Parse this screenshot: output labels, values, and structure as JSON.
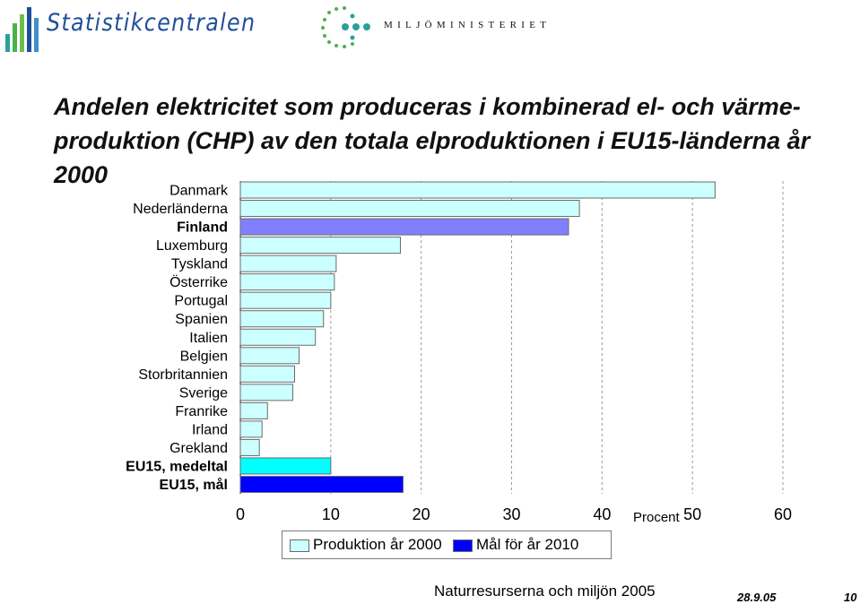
{
  "header": {
    "left_logo_text": "Statistikcentralen",
    "right_logo_text": "MILJÖMINISTERIET"
  },
  "title": "Andelen elektricitet som produceras i kombinerad el- och värme-produktion (CHP) av den totala elproduktionen i EU15-länderna år 2000",
  "footer": {
    "source": "Naturresurserna och miljön 2005",
    "date": "28.9.05",
    "page": "10"
  },
  "colors": {
    "production": "#ccffff",
    "finland": "#8080ff",
    "eu_average": "#00ffff",
    "target": "#0000ff",
    "bar_border": "#6b6b6b",
    "logo_blue": "#1f4f98",
    "logo_green": "#4fb04a",
    "logo_teal": "#2aa198"
  },
  "chart_data": {
    "type": "bar",
    "orientation": "horizontal",
    "categories": [
      "Danmark",
      "Nederländerna",
      "Finland",
      "Luxemburg",
      "Tyskland",
      "Österrike",
      "Portugal",
      "Spanien",
      "Italien",
      "Belgien",
      "Storbritannien",
      "Sverige",
      "Franrike",
      "Irland",
      "Grekland",
      "EU15, medeltal",
      "EU15, mål"
    ],
    "bold_categories": [
      "Finland",
      "EU15, medeltal",
      "EU15, mål"
    ],
    "values": [
      52.5,
      37.5,
      36.3,
      17.7,
      10.6,
      10.4,
      10.0,
      9.2,
      8.3,
      6.5,
      6.0,
      5.8,
      3.0,
      2.4,
      2.1,
      10.0,
      18.0
    ],
    "series": [
      {
        "name": "Produktion år 2000",
        "color_key": "production"
      },
      {
        "name": "Mål för år 2010",
        "color_key": "target"
      }
    ],
    "bar_series_index": [
      0,
      0,
      0,
      0,
      0,
      0,
      0,
      0,
      0,
      0,
      0,
      0,
      0,
      0,
      0,
      0,
      1
    ],
    "bar_color_key": [
      "production",
      "production",
      "finland",
      "production",
      "production",
      "production",
      "production",
      "production",
      "production",
      "production",
      "production",
      "production",
      "production",
      "production",
      "production",
      "eu_average",
      "target"
    ],
    "xlabel": "Procent",
    "xlim": [
      0,
      60
    ],
    "xticks": [
      "0",
      "10",
      "20",
      "30",
      "40",
      "50",
      "60"
    ],
    "grid": "vertical dashed",
    "legend_position": "bottom"
  }
}
